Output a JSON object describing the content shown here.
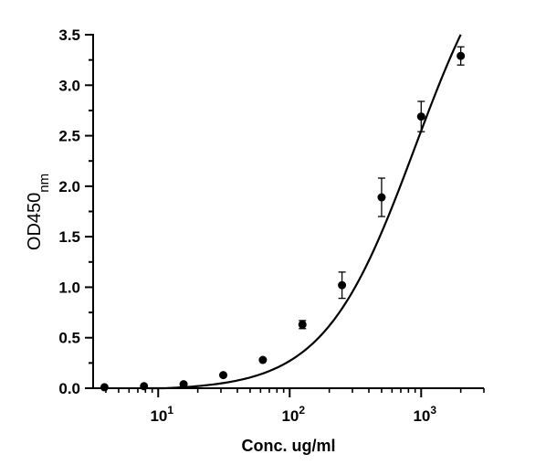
{
  "chart_data": {
    "type": "scatter",
    "title": "",
    "xlabel": "Conc. ug/ml",
    "ylabel": "OD450",
    "ylabel_subscript": "nm",
    "x_scale": "log",
    "xlim": [
      3.2,
      3000
    ],
    "ylim": [
      0,
      3.5
    ],
    "y_ticks": [
      "0.0",
      "0.5",
      "1.0",
      "1.5",
      "2.0",
      "2.5",
      "3.0",
      "3.5"
    ],
    "x_ticks": [
      {
        "value": 10,
        "base": "10",
        "exponent": "1"
      },
      {
        "value": 100,
        "base": "10",
        "exponent": "2"
      },
      {
        "value": 1000,
        "base": "10",
        "exponent": "3"
      }
    ],
    "grid": false,
    "legend": "none",
    "series": [
      {
        "points": [
          {
            "x": 3.9,
            "y": 0.01,
            "err": 0
          },
          {
            "x": 7.8,
            "y": 0.02,
            "err": 0
          },
          {
            "x": 15.6,
            "y": 0.04,
            "err": 0
          },
          {
            "x": 31.25,
            "y": 0.13,
            "err": 0
          },
          {
            "x": 62.5,
            "y": 0.28,
            "err": 0
          },
          {
            "x": 125,
            "y": 0.63,
            "err": 0.04
          },
          {
            "x": 250,
            "y": 1.02,
            "err": 0.13
          },
          {
            "x": 500,
            "y": 1.89,
            "err": 0.19
          },
          {
            "x": 1000,
            "y": 2.69,
            "err": 0.15
          },
          {
            "x": 2000,
            "y": 3.29,
            "err": 0.09
          }
        ],
        "fit": {
          "model": "4PL",
          "bottom": -0.02,
          "top": 4.8,
          "ec50": 900,
          "hill": 1.25,
          "x_range": [
            8.5,
            2000
          ]
        }
      }
    ],
    "colors": {
      "marker": "#000000",
      "line": "#000000"
    }
  }
}
